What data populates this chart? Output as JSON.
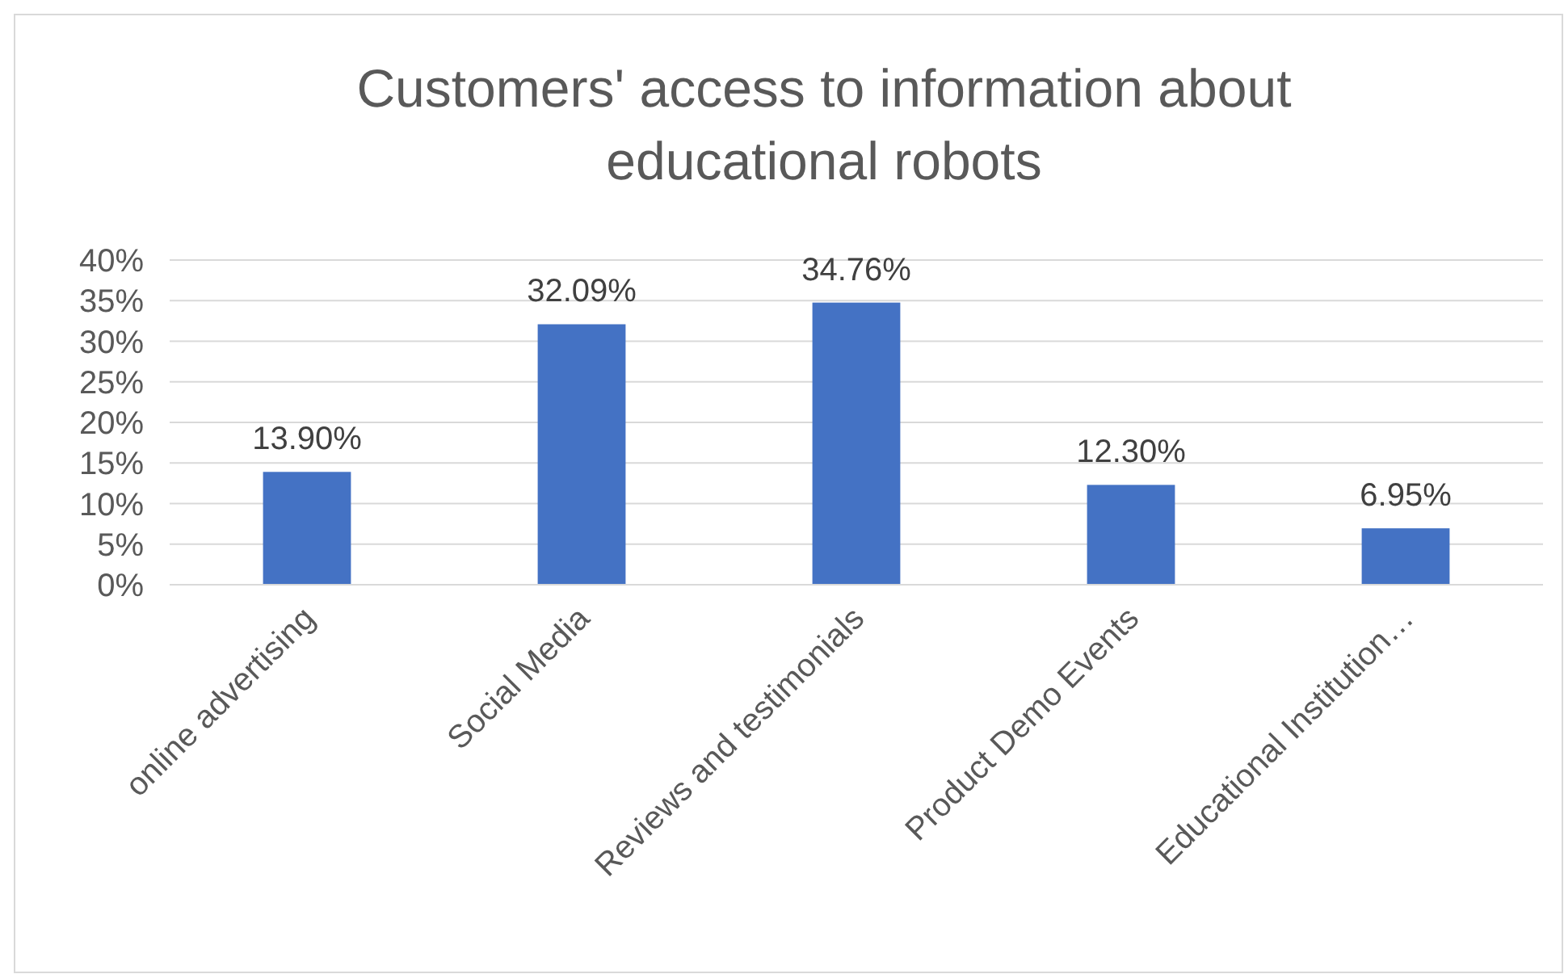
{
  "chart_data": {
    "type": "bar",
    "title": "Customers' access to information about educational robots",
    "categories": [
      "online advertising",
      "Social Media",
      "Reviews and testimonials",
      "Product Demo Events",
      "Educational Institution…"
    ],
    "values": [
      13.9,
      32.09,
      34.76,
      12.3,
      6.95
    ],
    "value_labels": [
      "13.90%",
      "32.09%",
      "34.76%",
      "12.30%",
      "6.95%"
    ],
    "color": "#4472c4",
    "ylim": [
      0,
      40
    ],
    "yticks": [
      {
        "value": 0,
        "label": "0%"
      },
      {
        "value": 5,
        "label": "5%"
      },
      {
        "value": 10,
        "label": "10%"
      },
      {
        "value": 15,
        "label": "15%"
      },
      {
        "value": 20,
        "label": "20%"
      },
      {
        "value": 25,
        "label": "25%"
      },
      {
        "value": 30,
        "label": "30%"
      },
      {
        "value": 35,
        "label": "35%"
      },
      {
        "value": 40,
        "label": "40%"
      }
    ],
    "grid": true
  }
}
